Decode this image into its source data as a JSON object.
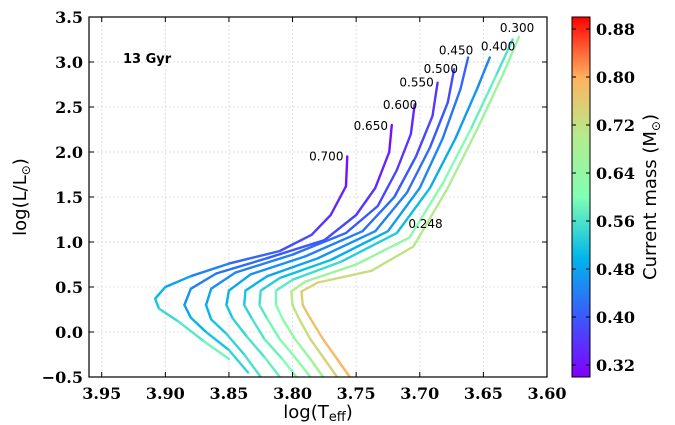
{
  "chart_data": {
    "type": "line",
    "title": "",
    "annotation": "13 Gyr",
    "xlabel": "log(T",
    "xlabel_sub": "eff",
    "xlabel_close": ")",
    "ylabel": "log(L/L",
    "ylabel_close": ")",
    "sun_symbol": "⊙",
    "xlim": [
      3.96,
      3.6
    ],
    "ylim": [
      -0.5,
      3.5
    ],
    "x_reversed": true,
    "xticks": [
      3.95,
      3.9,
      3.85,
      3.8,
      3.75,
      3.7,
      3.65,
      3.6
    ],
    "xtick_labels": [
      "3.95",
      "3.90",
      "3.85",
      "3.80",
      "3.75",
      "3.70",
      "3.65",
      "3.60"
    ],
    "yticks": [
      -0.5,
      0.0,
      0.5,
      1.0,
      1.5,
      2.0,
      2.5,
      3.0,
      3.5
    ],
    "ytick_labels": [
      "−0.5",
      "0.0",
      "0.5",
      "1.0",
      "1.5",
      "2.0",
      "2.5",
      "3.0",
      "3.5"
    ],
    "grid": true,
    "colorbar": {
      "label": "Current mass (M",
      "label_close": ")",
      "range": [
        0.3,
        0.9
      ],
      "ticks": [
        0.32,
        0.4,
        0.48,
        0.56,
        0.64,
        0.72,
        0.8,
        0.88
      ],
      "tick_labels": [
        "0.32",
        "0.40",
        "0.48",
        "0.56",
        "0.64",
        "0.72",
        "0.80",
        "0.88"
      ],
      "colormap": "rainbow"
    },
    "series": [
      {
        "label": "0.700",
        "tip": [
          3.757,
          1.95
        ],
        "points": [
          [
            3.757,
            1.95
          ],
          [
            3.758,
            1.62
          ],
          [
            3.77,
            1.3
          ],
          [
            3.785,
            1.08
          ],
          [
            3.81,
            0.9
          ],
          [
            3.85,
            0.76
          ],
          [
            3.88,
            0.62
          ],
          [
            3.9,
            0.5
          ],
          [
            3.908,
            0.37
          ],
          [
            3.905,
            0.26
          ],
          [
            3.89,
            0.12
          ],
          [
            3.87,
            -0.1
          ],
          [
            3.85,
            -0.3
          ]
        ],
        "masses": [
          0.31,
          0.33,
          0.35,
          0.37,
          0.4,
          0.43,
          0.46,
          0.49,
          0.51,
          0.53,
          0.56,
          0.58,
          0.6
        ]
      },
      {
        "label": "0.650",
        "tip": [
          3.722,
          2.3
        ],
        "points": [
          [
            3.722,
            2.3
          ],
          [
            3.724,
            2.0
          ],
          [
            3.735,
            1.6
          ],
          [
            3.75,
            1.3
          ],
          [
            3.775,
            1.02
          ],
          [
            3.82,
            0.82
          ],
          [
            3.86,
            0.65
          ],
          [
            3.88,
            0.48
          ],
          [
            3.885,
            0.3
          ],
          [
            3.88,
            0.16
          ],
          [
            3.868,
            0.0
          ],
          [
            3.85,
            -0.2
          ],
          [
            3.835,
            -0.45
          ]
        ],
        "masses": [
          0.31,
          0.33,
          0.35,
          0.37,
          0.39,
          0.41,
          0.43,
          0.45,
          0.47,
          0.49,
          0.51,
          0.53,
          0.55
        ]
      },
      {
        "label": "0.600",
        "tip": [
          3.704,
          2.53
        ],
        "points": [
          [
            3.704,
            2.53
          ],
          [
            3.707,
            2.2
          ],
          [
            3.718,
            1.8
          ],
          [
            3.733,
            1.4
          ],
          [
            3.758,
            1.1
          ],
          [
            3.8,
            0.86
          ],
          [
            3.845,
            0.66
          ],
          [
            3.864,
            0.48
          ],
          [
            3.868,
            0.3
          ],
          [
            3.864,
            0.14
          ],
          [
            3.852,
            -0.02
          ],
          [
            3.838,
            -0.25
          ],
          [
            3.825,
            -0.5
          ]
        ],
        "masses": [
          0.33,
          0.35,
          0.37,
          0.39,
          0.41,
          0.43,
          0.45,
          0.47,
          0.49,
          0.51,
          0.53,
          0.55,
          0.57
        ]
      },
      {
        "label": "0.550",
        "tip": [
          3.686,
          2.77
        ],
        "points": [
          [
            3.686,
            2.77
          ],
          [
            3.69,
            2.4
          ],
          [
            3.703,
            1.95
          ],
          [
            3.72,
            1.5
          ],
          [
            3.745,
            1.12
          ],
          [
            3.79,
            0.84
          ],
          [
            3.833,
            0.64
          ],
          [
            3.85,
            0.46
          ],
          [
            3.852,
            0.3
          ],
          [
            3.847,
            0.15
          ],
          [
            3.836,
            -0.05
          ],
          [
            3.822,
            -0.28
          ],
          [
            3.81,
            -0.5
          ]
        ],
        "masses": [
          0.35,
          0.37,
          0.39,
          0.41,
          0.43,
          0.45,
          0.47,
          0.49,
          0.51,
          0.53,
          0.55,
          0.57,
          0.59
        ]
      },
      {
        "label": "0.500",
        "tip": [
          3.673,
          2.92
        ],
        "points": [
          [
            3.673,
            2.92
          ],
          [
            3.678,
            2.55
          ],
          [
            3.692,
            2.05
          ],
          [
            3.71,
            1.55
          ],
          [
            3.735,
            1.12
          ],
          [
            3.78,
            0.82
          ],
          [
            3.82,
            0.62
          ],
          [
            3.837,
            0.46
          ],
          [
            3.838,
            0.3
          ],
          [
            3.832,
            0.15
          ],
          [
            3.822,
            -0.08
          ],
          [
            3.808,
            -0.3
          ],
          [
            3.797,
            -0.5
          ]
        ],
        "masses": [
          0.37,
          0.39,
          0.41,
          0.43,
          0.45,
          0.47,
          0.49,
          0.51,
          0.53,
          0.55,
          0.57,
          0.59,
          0.61
        ]
      },
      {
        "label": "0.450",
        "tip": [
          3.662,
          3.05
        ],
        "points": [
          [
            3.662,
            3.05
          ],
          [
            3.668,
            2.7
          ],
          [
            3.682,
            2.15
          ],
          [
            3.7,
            1.6
          ],
          [
            3.725,
            1.12
          ],
          [
            3.77,
            0.8
          ],
          [
            3.81,
            0.6
          ],
          [
            3.825,
            0.46
          ],
          [
            3.826,
            0.3
          ],
          [
            3.82,
            0.15
          ],
          [
            3.81,
            -0.08
          ],
          [
            3.797,
            -0.3
          ],
          [
            3.786,
            -0.5
          ]
        ],
        "masses": [
          0.4,
          0.42,
          0.44,
          0.46,
          0.48,
          0.5,
          0.52,
          0.54,
          0.56,
          0.58,
          0.6,
          0.62,
          0.64
        ]
      },
      {
        "label": "0.400",
        "tip": [
          3.645,
          3.05
        ],
        "points": [
          [
            3.645,
            3.05
          ],
          [
            3.655,
            2.7
          ],
          [
            3.672,
            2.15
          ],
          [
            3.692,
            1.6
          ],
          [
            3.718,
            1.1
          ],
          [
            3.762,
            0.78
          ],
          [
            3.8,
            0.58
          ],
          [
            3.813,
            0.46
          ],
          [
            3.813,
            0.3
          ],
          [
            3.808,
            0.15
          ],
          [
            3.798,
            -0.08
          ],
          [
            3.786,
            -0.3
          ],
          [
            3.776,
            -0.5
          ]
        ],
        "masses": [
          0.44,
          0.46,
          0.48,
          0.5,
          0.52,
          0.54,
          0.56,
          0.58,
          0.6,
          0.62,
          0.64,
          0.66,
          0.68
        ]
      },
      {
        "label": "0.300",
        "tip": [
          3.627,
          3.25
        ],
        "points": [
          [
            3.627,
            3.25
          ],
          [
            3.64,
            2.85
          ],
          [
            3.66,
            2.25
          ],
          [
            3.682,
            1.65
          ],
          [
            3.708,
            1.05
          ],
          [
            3.75,
            0.75
          ],
          [
            3.79,
            0.56
          ],
          [
            3.801,
            0.45
          ],
          [
            3.8,
            0.3
          ],
          [
            3.795,
            0.15
          ],
          [
            3.786,
            -0.08
          ],
          [
            3.775,
            -0.3
          ],
          [
            3.765,
            -0.5
          ]
        ],
        "masses": [
          0.55,
          0.57,
          0.59,
          0.61,
          0.63,
          0.65,
          0.67,
          0.69,
          0.71,
          0.72,
          0.73,
          0.74,
          0.75
        ]
      },
      {
        "label": "0.248",
        "tip": [
          3.622,
          3.28
        ],
        "points": [
          [
            3.622,
            3.28
          ],
          [
            3.635,
            2.85
          ],
          [
            3.655,
            2.25
          ],
          [
            3.678,
            1.6
          ],
          [
            3.705,
            0.95
          ],
          [
            3.738,
            0.68
          ],
          [
            3.78,
            0.55
          ],
          [
            3.793,
            0.45
          ],
          [
            3.792,
            0.3
          ],
          [
            3.786,
            0.15
          ],
          [
            3.776,
            -0.08
          ],
          [
            3.765,
            -0.3
          ],
          [
            3.755,
            -0.5
          ]
        ],
        "masses": [
          0.63,
          0.65,
          0.67,
          0.69,
          0.71,
          0.72,
          0.74,
          0.75,
          0.76,
          0.77,
          0.78,
          0.79,
          0.8
        ]
      }
    ],
    "curve_labels": [
      {
        "text": "0.700",
        "x": 3.787,
        "y": 1.95
      },
      {
        "text": "0.650",
        "x": 3.752,
        "y": 2.29
      },
      {
        "text": "0.600",
        "x": 3.729,
        "y": 2.52
      },
      {
        "text": "0.550",
        "x": 3.716,
        "y": 2.77
      },
      {
        "text": "0.500",
        "x": 3.697,
        "y": 2.92
      },
      {
        "text": "0.450",
        "x": 3.685,
        "y": 3.13
      },
      {
        "text": "0.400",
        "x": 3.652,
        "y": 3.17
      },
      {
        "text": "0.300",
        "x": 3.637,
        "y": 3.38
      },
      {
        "text": "0.248",
        "x": 3.709,
        "y": 1.2
      }
    ]
  }
}
